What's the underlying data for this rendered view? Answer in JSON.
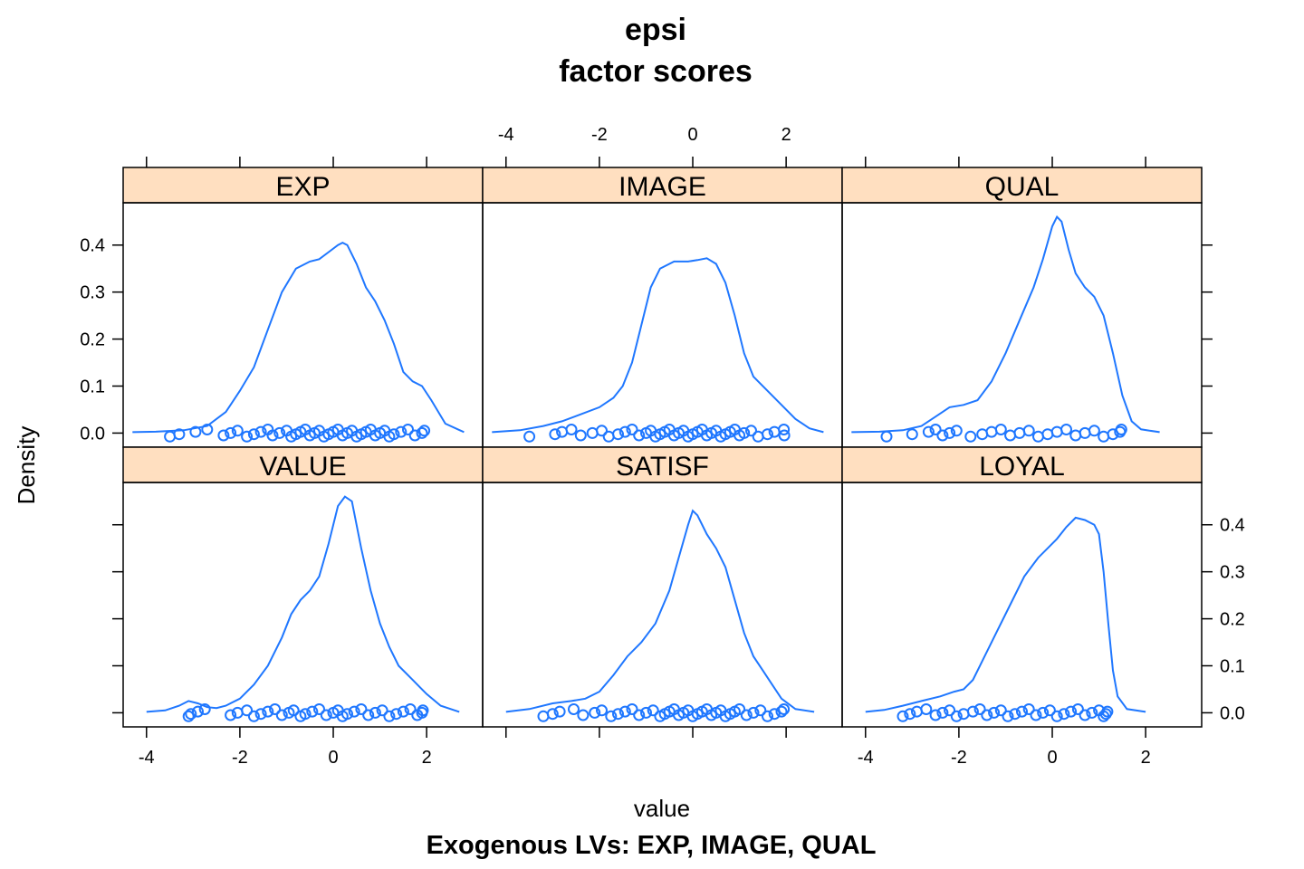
{
  "chart_data": {
    "type": "lattice-density",
    "title": [
      "epsi",
      "factor scores"
    ],
    "xlabel": "value",
    "ylabel": "Density",
    "sub": "Exogenous LVs:  EXP, IMAGE, QUAL",
    "xlim": [
      -4.5,
      3.2
    ],
    "ylim": [
      -0.03,
      0.49
    ],
    "x_ticks": [
      -4,
      -2,
      0,
      2
    ],
    "x_tick_labels": [
      "-4",
      "-2",
      "0",
      "2"
    ],
    "y_ticks": [
      0.0,
      0.1,
      0.2,
      0.3,
      0.4
    ],
    "y_tick_labels": [
      "0.0",
      "0.1",
      "0.2",
      "0.3",
      "0.4"
    ],
    "layout": {
      "columns": 3,
      "rows": 2
    },
    "grid": false,
    "colors": {
      "line": "#1f77ff",
      "strip": "#ffdfc0"
    },
    "panels": [
      {
        "name": "EXP",
        "row": 0,
        "col": 0,
        "density": [
          [
            -4.3,
            0.002
          ],
          [
            -3.8,
            0.003
          ],
          [
            -3.2,
            0.006
          ],
          [
            -2.7,
            0.015
          ],
          [
            -2.3,
            0.045
          ],
          [
            -2.0,
            0.09
          ],
          [
            -1.7,
            0.14
          ],
          [
            -1.4,
            0.22
          ],
          [
            -1.1,
            0.3
          ],
          [
            -0.8,
            0.35
          ],
          [
            -0.5,
            0.365
          ],
          [
            -0.3,
            0.37
          ],
          [
            -0.1,
            0.385
          ],
          [
            0.1,
            0.4
          ],
          [
            0.2,
            0.405
          ],
          [
            0.3,
            0.4
          ],
          [
            0.5,
            0.36
          ],
          [
            0.7,
            0.31
          ],
          [
            0.9,
            0.28
          ],
          [
            1.1,
            0.24
          ],
          [
            1.3,
            0.19
          ],
          [
            1.5,
            0.13
          ],
          [
            1.7,
            0.11
          ],
          [
            1.9,
            0.1
          ],
          [
            2.1,
            0.07
          ],
          [
            2.4,
            0.02
          ],
          [
            2.8,
            0.002
          ]
        ],
        "points": [
          -3.5,
          -3.3,
          -2.95,
          -2.7,
          -2.35,
          -2.2,
          -2.05,
          -1.85,
          -1.7,
          -1.55,
          -1.4,
          -1.3,
          -1.15,
          -1.0,
          -0.9,
          -0.8,
          -0.7,
          -0.6,
          -0.5,
          -0.4,
          -0.3,
          -0.2,
          -0.1,
          0.0,
          0.1,
          0.2,
          0.3,
          0.4,
          0.5,
          0.6,
          0.7,
          0.8,
          0.9,
          1.0,
          1.1,
          1.2,
          1.3,
          1.45,
          1.6,
          1.75,
          1.9,
          1.95
        ]
      },
      {
        "name": "IMAGE",
        "row": 0,
        "col": 1,
        "density": [
          [
            -4.3,
            0.002
          ],
          [
            -3.7,
            0.006
          ],
          [
            -3.2,
            0.015
          ],
          [
            -2.8,
            0.025
          ],
          [
            -2.4,
            0.04
          ],
          [
            -2.0,
            0.055
          ],
          [
            -1.7,
            0.075
          ],
          [
            -1.5,
            0.1
          ],
          [
            -1.3,
            0.15
          ],
          [
            -1.1,
            0.23
          ],
          [
            -0.9,
            0.31
          ],
          [
            -0.7,
            0.35
          ],
          [
            -0.4,
            0.365
          ],
          [
            -0.1,
            0.365
          ],
          [
            0.1,
            0.368
          ],
          [
            0.3,
            0.372
          ],
          [
            0.5,
            0.36
          ],
          [
            0.7,
            0.32
          ],
          [
            0.9,
            0.25
          ],
          [
            1.1,
            0.17
          ],
          [
            1.3,
            0.12
          ],
          [
            1.6,
            0.09
          ],
          [
            1.9,
            0.06
          ],
          [
            2.2,
            0.03
          ],
          [
            2.5,
            0.01
          ],
          [
            2.8,
            0.002
          ]
        ],
        "points": [
          -3.5,
          -2.95,
          -2.8,
          -2.6,
          -2.4,
          -2.15,
          -1.95,
          -1.8,
          -1.6,
          -1.45,
          -1.3,
          -1.15,
          -1.0,
          -0.9,
          -0.8,
          -0.7,
          -0.6,
          -0.5,
          -0.4,
          -0.3,
          -0.2,
          -0.1,
          0.0,
          0.1,
          0.2,
          0.3,
          0.4,
          0.5,
          0.6,
          0.7,
          0.8,
          0.9,
          1.0,
          1.1,
          1.25,
          1.4,
          1.6,
          1.75,
          1.95,
          1.96
        ]
      },
      {
        "name": "QUAL",
        "row": 0,
        "col": 2,
        "density": [
          [
            -4.3,
            0.002
          ],
          [
            -3.7,
            0.003
          ],
          [
            -3.2,
            0.006
          ],
          [
            -2.8,
            0.015
          ],
          [
            -2.5,
            0.035
          ],
          [
            -2.2,
            0.055
          ],
          [
            -1.9,
            0.06
          ],
          [
            -1.6,
            0.07
          ],
          [
            -1.3,
            0.11
          ],
          [
            -1.0,
            0.17
          ],
          [
            -0.7,
            0.24
          ],
          [
            -0.4,
            0.31
          ],
          [
            -0.2,
            0.37
          ],
          [
            0.0,
            0.44
          ],
          [
            0.1,
            0.46
          ],
          [
            0.2,
            0.45
          ],
          [
            0.35,
            0.39
          ],
          [
            0.5,
            0.34
          ],
          [
            0.7,
            0.31
          ],
          [
            0.9,
            0.29
          ],
          [
            1.1,
            0.25
          ],
          [
            1.3,
            0.17
          ],
          [
            1.5,
            0.08
          ],
          [
            1.7,
            0.025
          ],
          [
            1.9,
            0.008
          ],
          [
            2.3,
            0.002
          ]
        ],
        "points": [
          -3.55,
          -3.0,
          -2.65,
          -2.5,
          -2.35,
          -2.2,
          -2.05,
          -1.75,
          -1.5,
          -1.3,
          -1.1,
          -0.9,
          -0.7,
          -0.5,
          -0.3,
          -0.1,
          0.1,
          0.3,
          0.5,
          0.7,
          0.9,
          1.1,
          1.3,
          1.45,
          1.48
        ]
      },
      {
        "name": "VALUE",
        "row": 1,
        "col": 0,
        "density": [
          [
            -4.0,
            0.002
          ],
          [
            -3.6,
            0.005
          ],
          [
            -3.3,
            0.015
          ],
          [
            -3.1,
            0.025
          ],
          [
            -2.9,
            0.02
          ],
          [
            -2.7,
            0.012
          ],
          [
            -2.5,
            0.01
          ],
          [
            -2.3,
            0.015
          ],
          [
            -2.0,
            0.03
          ],
          [
            -1.7,
            0.06
          ],
          [
            -1.4,
            0.1
          ],
          [
            -1.1,
            0.16
          ],
          [
            -0.9,
            0.21
          ],
          [
            -0.7,
            0.24
          ],
          [
            -0.5,
            0.26
          ],
          [
            -0.3,
            0.29
          ],
          [
            -0.1,
            0.36
          ],
          [
            0.1,
            0.44
          ],
          [
            0.25,
            0.46
          ],
          [
            0.4,
            0.45
          ],
          [
            0.6,
            0.35
          ],
          [
            0.8,
            0.26
          ],
          [
            1.0,
            0.19
          ],
          [
            1.2,
            0.14
          ],
          [
            1.4,
            0.1
          ],
          [
            1.7,
            0.07
          ],
          [
            2.0,
            0.04
          ],
          [
            2.3,
            0.015
          ],
          [
            2.7,
            0.002
          ]
        ],
        "points": [
          -3.1,
          -3.05,
          -2.9,
          -2.75,
          -2.2,
          -2.05,
          -1.85,
          -1.7,
          -1.55,
          -1.4,
          -1.25,
          -1.1,
          -0.95,
          -0.85,
          -0.7,
          -0.6,
          -0.45,
          -0.3,
          -0.15,
          0.0,
          0.1,
          0.2,
          0.3,
          0.45,
          0.6,
          0.75,
          0.9,
          1.05,
          1.2,
          1.35,
          1.5,
          1.65,
          1.8,
          1.9,
          1.92
        ]
      },
      {
        "name": "SATISF",
        "row": 1,
        "col": 1,
        "density": [
          [
            -4.0,
            0.002
          ],
          [
            -3.5,
            0.008
          ],
          [
            -3.0,
            0.02
          ],
          [
            -2.6,
            0.025
          ],
          [
            -2.3,
            0.03
          ],
          [
            -2.0,
            0.045
          ],
          [
            -1.7,
            0.08
          ],
          [
            -1.4,
            0.12
          ],
          [
            -1.1,
            0.15
          ],
          [
            -0.8,
            0.19
          ],
          [
            -0.5,
            0.26
          ],
          [
            -0.3,
            0.33
          ],
          [
            -0.1,
            0.4
          ],
          [
            0.0,
            0.43
          ],
          [
            0.1,
            0.42
          ],
          [
            0.3,
            0.38
          ],
          [
            0.5,
            0.35
          ],
          [
            0.7,
            0.31
          ],
          [
            0.9,
            0.24
          ],
          [
            1.1,
            0.17
          ],
          [
            1.3,
            0.12
          ],
          [
            1.5,
            0.09
          ],
          [
            1.7,
            0.06
          ],
          [
            1.9,
            0.03
          ],
          [
            2.2,
            0.008
          ],
          [
            2.6,
            0.002
          ]
        ],
        "points": [
          -3.2,
          -3.0,
          -2.85,
          -2.55,
          -2.35,
          -2.1,
          -1.95,
          -1.75,
          -1.6,
          -1.45,
          -1.3,
          -1.15,
          -1.0,
          -0.85,
          -0.7,
          -0.6,
          -0.5,
          -0.4,
          -0.3,
          -0.2,
          -0.1,
          0.0,
          0.1,
          0.2,
          0.3,
          0.4,
          0.5,
          0.6,
          0.7,
          0.8,
          0.9,
          1.0,
          1.15,
          1.3,
          1.45,
          1.6,
          1.75,
          1.9,
          1.95
        ]
      },
      {
        "name": "LOYAL",
        "row": 1,
        "col": 2,
        "density": [
          [
            -4.0,
            0.002
          ],
          [
            -3.6,
            0.006
          ],
          [
            -3.2,
            0.015
          ],
          [
            -2.8,
            0.025
          ],
          [
            -2.4,
            0.035
          ],
          [
            -2.1,
            0.045
          ],
          [
            -1.9,
            0.05
          ],
          [
            -1.7,
            0.07
          ],
          [
            -1.5,
            0.11
          ],
          [
            -1.2,
            0.17
          ],
          [
            -0.9,
            0.23
          ],
          [
            -0.6,
            0.29
          ],
          [
            -0.3,
            0.33
          ],
          [
            -0.1,
            0.35
          ],
          [
            0.1,
            0.37
          ],
          [
            0.3,
            0.395
          ],
          [
            0.5,
            0.415
          ],
          [
            0.7,
            0.41
          ],
          [
            0.9,
            0.4
          ],
          [
            1.0,
            0.38
          ],
          [
            1.1,
            0.3
          ],
          [
            1.2,
            0.19
          ],
          [
            1.3,
            0.09
          ],
          [
            1.4,
            0.035
          ],
          [
            1.6,
            0.008
          ],
          [
            2.0,
            0.002
          ]
        ],
        "points": [
          -3.2,
          -3.05,
          -2.9,
          -2.7,
          -2.5,
          -2.35,
          -2.2,
          -2.05,
          -1.9,
          -1.7,
          -1.55,
          -1.4,
          -1.25,
          -1.1,
          -0.95,
          -0.8,
          -0.65,
          -0.5,
          -0.35,
          -0.2,
          -0.05,
          0.1,
          0.25,
          0.4,
          0.55,
          0.7,
          0.85,
          1.0,
          1.1,
          1.15,
          1.18
        ]
      }
    ]
  }
}
